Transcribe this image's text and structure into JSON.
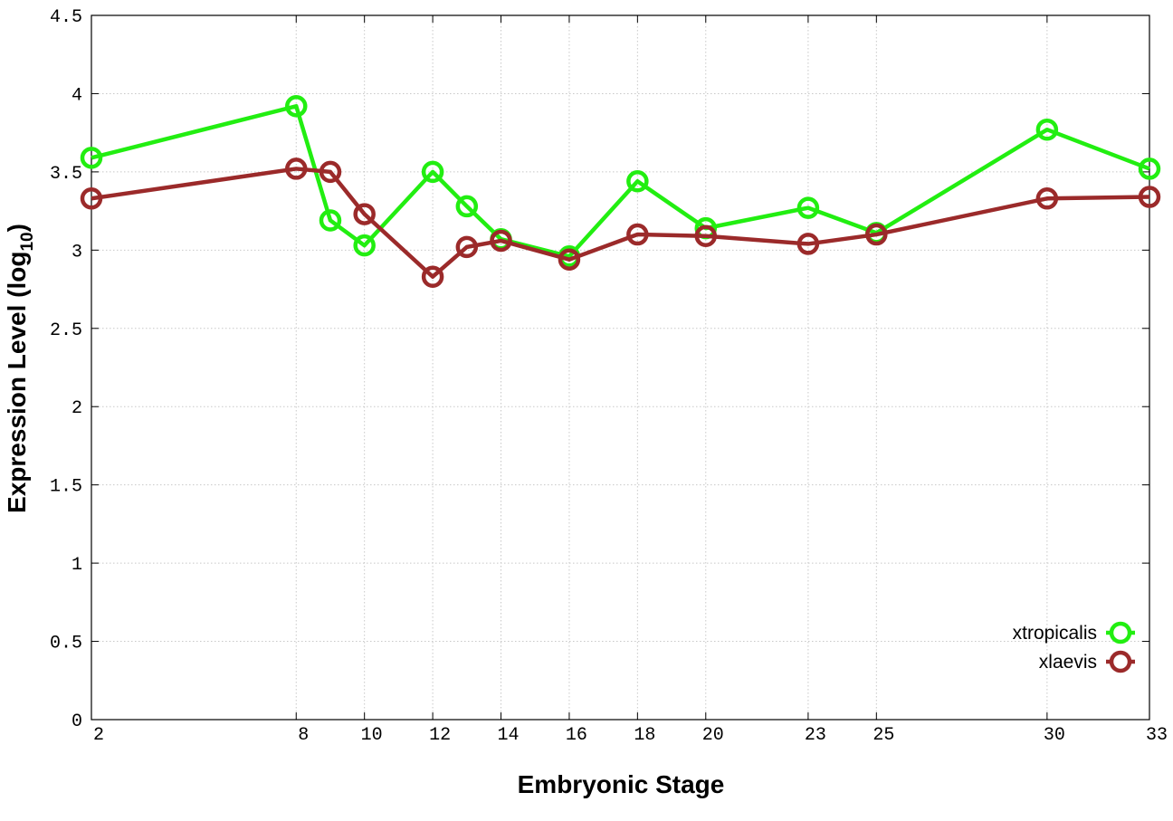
{
  "chart_data": {
    "type": "line",
    "xlabel": "Embryonic Stage",
    "ylabel_main": "Expression Level (log",
    "ylabel_sub": "10",
    "ylabel_close": ")",
    "xlim": [
      2,
      33
    ],
    "ylim": [
      0,
      4.5
    ],
    "x_ticks": [
      2,
      8,
      10,
      12,
      14,
      16,
      18,
      20,
      23,
      25,
      30,
      33
    ],
    "y_ticks": [
      0,
      0.5,
      1,
      1.5,
      2,
      2.5,
      3,
      3.5,
      4,
      4.5
    ],
    "y_tick_labels": [
      "0",
      "0.5",
      "1",
      "1.5",
      "2",
      "2.5",
      "3",
      "3.5",
      "4",
      "4.5"
    ],
    "grid": true,
    "legend_position": "bottom-right",
    "series": [
      {
        "name": "xtropicalis",
        "color": "#22ee11",
        "points": [
          {
            "x": 2,
            "y": 3.59
          },
          {
            "x": 8,
            "y": 3.92
          },
          {
            "x": 9,
            "y": 3.19
          },
          {
            "x": 10,
            "y": 3.03
          },
          {
            "x": 12,
            "y": 3.5
          },
          {
            "x": 13,
            "y": 3.28
          },
          {
            "x": 14,
            "y": 3.07
          },
          {
            "x": 16,
            "y": 2.96
          },
          {
            "x": 18,
            "y": 3.44
          },
          {
            "x": 20,
            "y": 3.14
          },
          {
            "x": 23,
            "y": 3.27
          },
          {
            "x": 25,
            "y": 3.11
          },
          {
            "x": 30,
            "y": 3.77
          },
          {
            "x": 33,
            "y": 3.52
          }
        ]
      },
      {
        "name": "xlaevis",
        "color": "#9b2a2a",
        "points": [
          {
            "x": 2,
            "y": 3.33
          },
          {
            "x": 8,
            "y": 3.52
          },
          {
            "x": 9,
            "y": 3.5
          },
          {
            "x": 10,
            "y": 3.23
          },
          {
            "x": 12,
            "y": 2.83
          },
          {
            "x": 13,
            "y": 3.02
          },
          {
            "x": 14,
            "y": 3.06
          },
          {
            "x": 16,
            "y": 2.94
          },
          {
            "x": 18,
            "y": 3.1
          },
          {
            "x": 20,
            "y": 3.09
          },
          {
            "x": 23,
            "y": 3.04
          },
          {
            "x": 25,
            "y": 3.1
          },
          {
            "x": 30,
            "y": 3.33
          },
          {
            "x": 33,
            "y": 3.34
          }
        ]
      }
    ]
  }
}
